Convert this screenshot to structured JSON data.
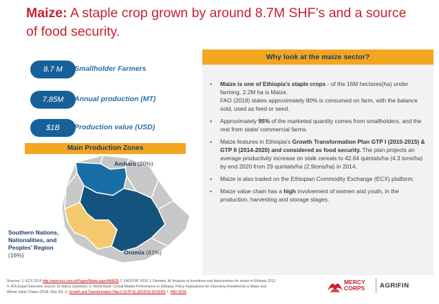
{
  "header": {
    "title_bold": "Maize:",
    "title_rest": " A staple crop grown by around 8.7M SHF’s and a source of food security."
  },
  "stats": [
    {
      "value": "8.7 M",
      "label": "Smallholder Farmers"
    },
    {
      "value": "7.85M",
      "label": "Annual production (MT)"
    },
    {
      "value": "$1B",
      "label": "Production value (USD)"
    }
  ],
  "zones": {
    "heading": "Main Production Zones",
    "regions": [
      {
        "name": "Amhara",
        "share": "(20%)"
      },
      {
        "name": "Southern Nations, Nationalities, and Peoples’ Region",
        "share": "(16%)"
      },
      {
        "name": "Oromia",
        "share": "(61%)"
      }
    ],
    "colors": {
      "amhara": "#1a6ea8",
      "oromia": "#15537f",
      "snnpr": "#f5c96e",
      "other": "#c8c8c8"
    }
  },
  "why": {
    "heading": "Why look at the maize sector?",
    "bullets": [
      {
        "b1_strong": "Maize is one of Ethiopia’s staple crops",
        "b1_text": " - of the 16M hectares(ha) under farming, 2.2M ha is Maize.",
        "b1_text2": "FAO (2018) states approximately 80% is consumed on farm, with the balance sold, used as feed or seed."
      },
      {
        "b2_pre": "Approximately ",
        "b2_strong": "95%",
        "b2_text": " of the marketed quantity comes from smallholders, and the rest from state/ commercial farms."
      },
      {
        "b3_pre": "Maize features in Ethiopia’s ",
        "b3_strong": "Growth Transformation Plan GTP I (2010-2015) &  GTP II (2014-2020) and considered as food security.",
        "b3_text": "  The plan projects an average productivity increase on stalk cereals to 42.64 quintals/ha (4.3 tons/ha) by end 2020 from 29 quintals/ha (2.9tons/ha) in 2014."
      },
      {
        "b4_text": "Maize is also traded on the Ethiopian Commodity Exchange (ECX) platform."
      },
      {
        "b5_pre": "Maize value chain has a ",
        "b5_strong": "high",
        "b5_text": " involvement of women and youth, in the production, harvesting and storage stages."
      }
    ]
  },
  "footer": {
    "s1": "Sources: 1. ECX,2019 ",
    "link1": "http://www.ecx.com.et/Pages/Maize.aspx#MAIZE",
    "s2": "  2. FAOSTAT 2016  3. Demeke, M. Analysis of incentives and disincentives for maize in Ethiopia 2012",
    "s3": "4. ATA Expert Interview Source: Dr Marco Quinones. 5. World Bank: Cereal Market Performance in Ethiopia: Policy Implications for Improving Investments in Maize and",
    "s4": "Wheat Value Chains (2018, May 30).  6. ",
    "link2": "Growth and Transformation Plan II (GTP II) (2015/16-2019/20)",
    "s5": "  7. ",
    "link3": "FAO 2018"
  },
  "logos": {
    "mercy_corps": "MERCY CORPS",
    "agrifin": "AGRIFIN"
  }
}
